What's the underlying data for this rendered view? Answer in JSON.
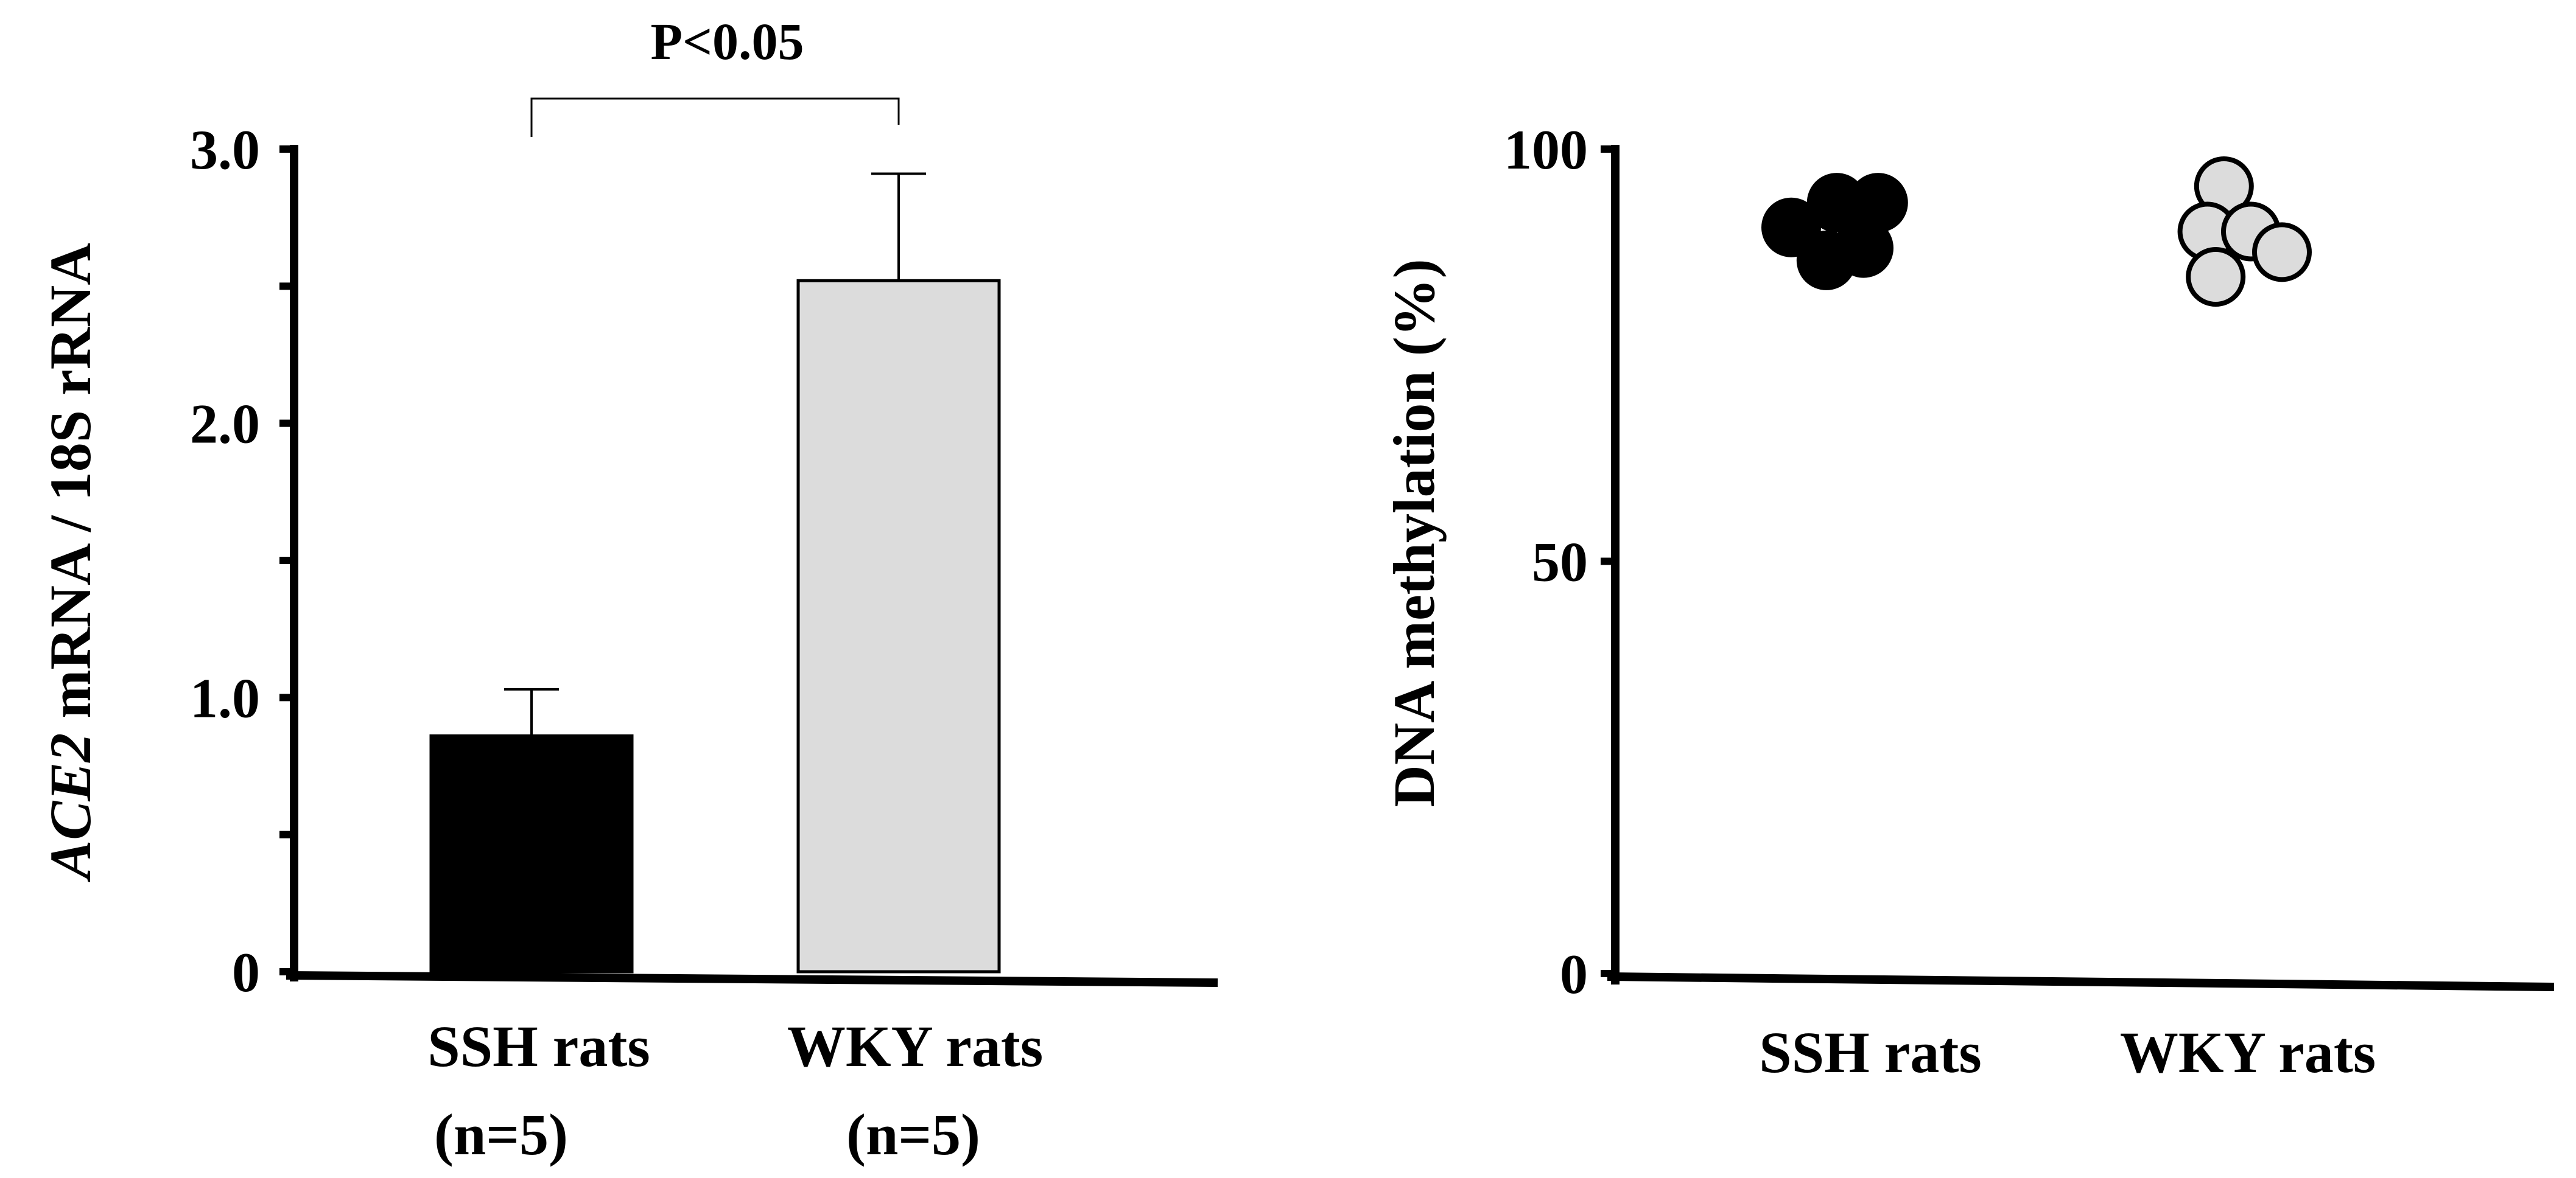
{
  "chart_data": [
    {
      "type": "bar",
      "ylabel_italic": "ACE2",
      "ylabel_rest": " mRNA / 18S rRNA",
      "categories": [
        "SSH rats",
        "WKY rats"
      ],
      "category_n": [
        "(n=5)",
        "(n=5)"
      ],
      "values": [
        0.86,
        2.52
      ],
      "errors": [
        0.17,
        0.39
      ],
      "bar_colors": [
        "#000000",
        "#dcdcdc"
      ],
      "ylim": [
        0,
        3.0
      ],
      "yticks": [
        0,
        1.0,
        2.0,
        3.0
      ],
      "ytick_labels": [
        "0",
        "1.0",
        "2.0",
        "3.0"
      ],
      "significance": {
        "between": [
          0,
          1
        ],
        "label": "P<0.05"
      }
    },
    {
      "type": "scatter",
      "ylabel": "DNA methylation (%)",
      "categories": [
        "SSH rats",
        "WKY rats"
      ],
      "ylim": [
        0,
        100
      ],
      "yticks": [
        0,
        50,
        100
      ],
      "ytick_labels": [
        "0",
        "50",
        "100"
      ],
      "series": [
        {
          "name": "SSH rats",
          "color": "#000000",
          "points": [
            {
              "x": -0.2,
              "y": 90.5
            },
            {
              "x": 0.02,
              "y": 93.5
            },
            {
              "x": 0.22,
              "y": 93.5
            },
            {
              "x": -0.03,
              "y": 86.5
            },
            {
              "x": 0.15,
              "y": 88.0
            }
          ]
        },
        {
          "name": "WKY rats",
          "color": "#dcdcdc",
          "points": [
            {
              "x": -0.08,
              "y": 95.5
            },
            {
              "x": -0.16,
              "y": 90.0
            },
            {
              "x": 0.05,
              "y": 90.0
            },
            {
              "x": -0.12,
              "y": 84.5
            },
            {
              "x": 0.2,
              "y": 87.5
            }
          ]
        }
      ]
    }
  ]
}
